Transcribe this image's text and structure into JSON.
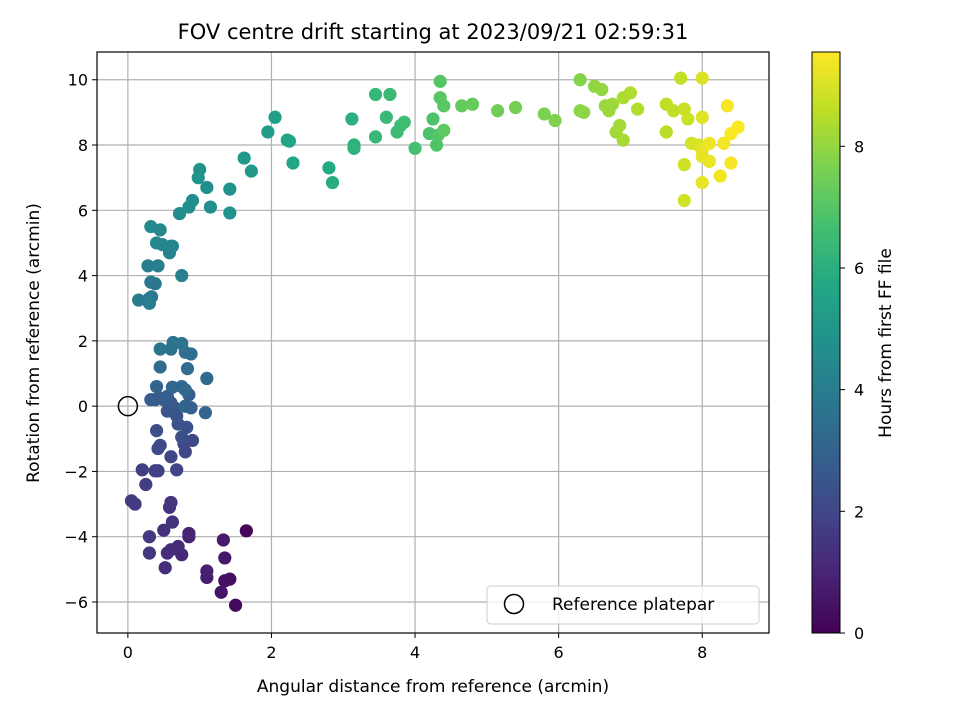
{
  "chart_data": {
    "type": "scatter",
    "title": "FOV centre drift starting at 2023/09/21 02:59:31",
    "xlabel": "Angular distance from reference (arcmin)",
    "ylabel": "Rotation from reference (arcmin)",
    "xlim": [
      -0.43,
      8.93
    ],
    "ylim": [
      -6.95,
      10.85
    ],
    "xticks": [
      0,
      2,
      4,
      6,
      8
    ],
    "yticks": [
      -6,
      -4,
      -2,
      0,
      2,
      4,
      6,
      8,
      10
    ],
    "grid": true,
    "colorbar": {
      "label": "Hours from first FF file",
      "range": [
        0,
        9.55
      ],
      "ticks": [
        0,
        2,
        4,
        6,
        8
      ],
      "colormap": "viridis"
    },
    "reference": {
      "x": 0,
      "y": 0,
      "label": "Reference platepar"
    },
    "legend_position": "lower-right",
    "points": [
      {
        "x": 1.65,
        "y": -3.82,
        "h": 0.15
      },
      {
        "x": 1.5,
        "y": -6.1,
        "h": 0.25
      },
      {
        "x": 1.42,
        "y": -5.3,
        "h": 0.35
      },
      {
        "x": 1.35,
        "y": -5.35,
        "h": 0.45
      },
      {
        "x": 1.3,
        "y": -5.7,
        "h": 0.55
      },
      {
        "x": 1.35,
        "y": -4.65,
        "h": 0.6
      },
      {
        "x": 1.33,
        "y": -4.1,
        "h": 0.7
      },
      {
        "x": 1.1,
        "y": -5.25,
        "h": 0.8
      },
      {
        "x": 1.1,
        "y": -5.05,
        "h": 0.85
      },
      {
        "x": 0.85,
        "y": -3.9,
        "h": 0.95
      },
      {
        "x": 0.85,
        "y": -4.0,
        "h": 1.0
      },
      {
        "x": 0.75,
        "y": -4.55,
        "h": 1.05
      },
      {
        "x": 0.7,
        "y": -4.3,
        "h": 1.1
      },
      {
        "x": 0.6,
        "y": -4.4,
        "h": 1.15
      },
      {
        "x": 0.55,
        "y": -4.5,
        "h": 1.2
      },
      {
        "x": 0.52,
        "y": -4.95,
        "h": 1.25
      },
      {
        "x": 0.5,
        "y": -3.8,
        "h": 1.3
      },
      {
        "x": 0.62,
        "y": -3.55,
        "h": 1.35
      },
      {
        "x": 0.58,
        "y": -3.1,
        "h": 1.4
      },
      {
        "x": 0.6,
        "y": -2.95,
        "h": 1.45
      },
      {
        "x": 0.3,
        "y": -4.5,
        "h": 1.5
      },
      {
        "x": 0.3,
        "y": -4.0,
        "h": 1.55
      },
      {
        "x": 0.1,
        "y": -3.0,
        "h": 1.6
      },
      {
        "x": 0.05,
        "y": -2.9,
        "h": 1.65
      },
      {
        "x": 0.25,
        "y": -2.4,
        "h": 1.7
      },
      {
        "x": 0.2,
        "y": -1.95,
        "h": 1.75
      },
      {
        "x": 0.38,
        "y": -1.98,
        "h": 1.8
      },
      {
        "x": 0.42,
        "y": -1.98,
        "h": 1.85
      },
      {
        "x": 0.68,
        "y": -1.95,
        "h": 1.9
      },
      {
        "x": 0.6,
        "y": -1.55,
        "h": 1.95
      },
      {
        "x": 0.8,
        "y": -1.4,
        "h": 2.0
      },
      {
        "x": 0.78,
        "y": -1.15,
        "h": 2.05
      },
      {
        "x": 0.9,
        "y": -1.05,
        "h": 2.1
      },
      {
        "x": 0.42,
        "y": -1.3,
        "h": 2.15
      },
      {
        "x": 0.45,
        "y": -1.2,
        "h": 2.2
      },
      {
        "x": 0.4,
        "y": -0.75,
        "h": 2.25
      },
      {
        "x": 0.75,
        "y": -0.95,
        "h": 2.3
      },
      {
        "x": 0.82,
        "y": -0.65,
        "h": 2.35
      },
      {
        "x": 0.7,
        "y": -0.55,
        "h": 2.4
      },
      {
        "x": 0.68,
        "y": -0.3,
        "h": 2.45
      },
      {
        "x": 0.55,
        "y": -0.15,
        "h": 2.5
      },
      {
        "x": 0.6,
        "y": 0.1,
        "h": 2.55
      },
      {
        "x": 0.65,
        "y": -0.05,
        "h": 2.6
      },
      {
        "x": 0.5,
        "y": 0.2,
        "h": 2.65
      },
      {
        "x": 0.45,
        "y": 0.25,
        "h": 2.7
      },
      {
        "x": 0.38,
        "y": 0.2,
        "h": 2.75
      },
      {
        "x": 0.32,
        "y": 0.2,
        "h": 2.8
      },
      {
        "x": 0.55,
        "y": 0.3,
        "h": 2.85
      },
      {
        "x": 0.85,
        "y": 0.35,
        "h": 2.9
      },
      {
        "x": 0.88,
        "y": -0.05,
        "h": 2.95
      },
      {
        "x": 0.8,
        "y": 0.0,
        "h": 3.0
      },
      {
        "x": 1.08,
        "y": -0.2,
        "h": 3.05
      },
      {
        "x": 0.4,
        "y": 0.6,
        "h": 3.1
      },
      {
        "x": 0.62,
        "y": 0.58,
        "h": 3.15
      },
      {
        "x": 0.75,
        "y": 0.6,
        "h": 3.2
      },
      {
        "x": 0.8,
        "y": 0.5,
        "h": 3.25
      },
      {
        "x": 1.1,
        "y": 0.85,
        "h": 3.3
      },
      {
        "x": 0.83,
        "y": 1.15,
        "h": 3.35
      },
      {
        "x": 0.45,
        "y": 1.2,
        "h": 3.4
      },
      {
        "x": 0.88,
        "y": 1.6,
        "h": 3.45
      },
      {
        "x": 0.8,
        "y": 1.65,
        "h": 3.5
      },
      {
        "x": 0.6,
        "y": 1.75,
        "h": 3.55
      },
      {
        "x": 0.63,
        "y": 1.95,
        "h": 3.6
      },
      {
        "x": 0.75,
        "y": 1.92,
        "h": 3.65
      },
      {
        "x": 0.45,
        "y": 1.75,
        "h": 3.7
      },
      {
        "x": 0.38,
        "y": 3.75,
        "h": 3.75
      },
      {
        "x": 0.32,
        "y": 3.8,
        "h": 3.8
      },
      {
        "x": 0.3,
        "y": 3.3,
        "h": 3.85
      },
      {
        "x": 0.33,
        "y": 3.35,
        "h": 3.9
      },
      {
        "x": 0.15,
        "y": 3.25,
        "h": 3.95
      },
      {
        "x": 0.3,
        "y": 3.15,
        "h": 4.0
      },
      {
        "x": 0.28,
        "y": 4.3,
        "h": 4.05
      },
      {
        "x": 0.42,
        "y": 4.3,
        "h": 4.1
      },
      {
        "x": 0.75,
        "y": 4.0,
        "h": 4.15
      },
      {
        "x": 0.58,
        "y": 4.7,
        "h": 4.2
      },
      {
        "x": 0.6,
        "y": 4.9,
        "h": 4.25
      },
      {
        "x": 0.62,
        "y": 4.9,
        "h": 4.3
      },
      {
        "x": 0.4,
        "y": 5.0,
        "h": 4.35
      },
      {
        "x": 0.48,
        "y": 4.95,
        "h": 4.4
      },
      {
        "x": 0.45,
        "y": 5.4,
        "h": 4.45
      },
      {
        "x": 0.32,
        "y": 5.5,
        "h": 4.5
      },
      {
        "x": 0.72,
        "y": 5.9,
        "h": 4.55
      },
      {
        "x": 0.85,
        "y": 6.1,
        "h": 4.6
      },
      {
        "x": 0.9,
        "y": 6.3,
        "h": 4.65
      },
      {
        "x": 1.15,
        "y": 6.1,
        "h": 4.7
      },
      {
        "x": 1.1,
        "y": 6.7,
        "h": 4.75
      },
      {
        "x": 1.42,
        "y": 5.92,
        "h": 4.8
      },
      {
        "x": 1.42,
        "y": 6.65,
        "h": 4.85
      },
      {
        "x": 0.98,
        "y": 7.0,
        "h": 4.9
      },
      {
        "x": 1.0,
        "y": 7.25,
        "h": 4.95
      },
      {
        "x": 1.62,
        "y": 7.6,
        "h": 5.05
      },
      {
        "x": 1.72,
        "y": 7.2,
        "h": 5.15
      },
      {
        "x": 1.95,
        "y": 8.4,
        "h": 5.3
      },
      {
        "x": 2.05,
        "y": 8.85,
        "h": 5.4
      },
      {
        "x": 2.22,
        "y": 8.15,
        "h": 5.5
      },
      {
        "x": 2.25,
        "y": 8.12,
        "h": 5.55
      },
      {
        "x": 2.3,
        "y": 7.45,
        "h": 5.65
      },
      {
        "x": 2.8,
        "y": 7.3,
        "h": 5.8
      },
      {
        "x": 2.85,
        "y": 6.85,
        "h": 5.9
      },
      {
        "x": 3.12,
        "y": 8.8,
        "h": 6.05
      },
      {
        "x": 3.15,
        "y": 8.0,
        "h": 6.1
      },
      {
        "x": 3.15,
        "y": 7.9,
        "h": 6.15
      },
      {
        "x": 3.45,
        "y": 9.55,
        "h": 6.3
      },
      {
        "x": 3.45,
        "y": 8.25,
        "h": 6.35
      },
      {
        "x": 3.6,
        "y": 8.85,
        "h": 6.4
      },
      {
        "x": 3.65,
        "y": 9.55,
        "h": 6.45
      },
      {
        "x": 3.75,
        "y": 8.4,
        "h": 6.5
      },
      {
        "x": 3.8,
        "y": 8.6,
        "h": 6.55
      },
      {
        "x": 3.85,
        "y": 8.7,
        "h": 6.6
      },
      {
        "x": 4.0,
        "y": 7.9,
        "h": 6.7
      },
      {
        "x": 4.2,
        "y": 8.35,
        "h": 6.8
      },
      {
        "x": 4.25,
        "y": 8.8,
        "h": 6.85
      },
      {
        "x": 4.3,
        "y": 8.0,
        "h": 6.9
      },
      {
        "x": 4.32,
        "y": 8.3,
        "h": 6.95
      },
      {
        "x": 4.35,
        "y": 9.95,
        "h": 7.0
      },
      {
        "x": 4.35,
        "y": 9.45,
        "h": 7.05
      },
      {
        "x": 4.4,
        "y": 9.2,
        "h": 7.1
      },
      {
        "x": 4.4,
        "y": 8.45,
        "h": 7.15
      },
      {
        "x": 4.65,
        "y": 9.2,
        "h": 7.25
      },
      {
        "x": 4.8,
        "y": 9.25,
        "h": 7.3
      },
      {
        "x": 5.15,
        "y": 9.05,
        "h": 7.45
      },
      {
        "x": 5.4,
        "y": 9.15,
        "h": 7.55
      },
      {
        "x": 5.8,
        "y": 8.95,
        "h": 7.65
      },
      {
        "x": 5.95,
        "y": 8.75,
        "h": 7.7
      },
      {
        "x": 6.3,
        "y": 10.0,
        "h": 7.8
      },
      {
        "x": 6.3,
        "y": 9.05,
        "h": 7.85
      },
      {
        "x": 6.35,
        "y": 9.0,
        "h": 7.9
      },
      {
        "x": 6.5,
        "y": 9.8,
        "h": 7.95
      },
      {
        "x": 6.6,
        "y": 9.7,
        "h": 8.0
      },
      {
        "x": 6.65,
        "y": 9.2,
        "h": 8.05
      },
      {
        "x": 6.7,
        "y": 9.05,
        "h": 8.1
      },
      {
        "x": 6.75,
        "y": 9.25,
        "h": 8.15
      },
      {
        "x": 6.8,
        "y": 8.4,
        "h": 8.2
      },
      {
        "x": 6.85,
        "y": 8.6,
        "h": 8.25
      },
      {
        "x": 6.9,
        "y": 8.15,
        "h": 8.3
      },
      {
        "x": 6.9,
        "y": 9.45,
        "h": 8.35
      },
      {
        "x": 7.0,
        "y": 9.6,
        "h": 8.4
      },
      {
        "x": 7.1,
        "y": 9.1,
        "h": 8.45
      },
      {
        "x": 7.5,
        "y": 8.4,
        "h": 8.55
      },
      {
        "x": 7.5,
        "y": 9.25,
        "h": 8.6
      },
      {
        "x": 7.6,
        "y": 9.05,
        "h": 8.65
      },
      {
        "x": 7.7,
        "y": 10.05,
        "h": 8.7
      },
      {
        "x": 7.75,
        "y": 9.1,
        "h": 8.75
      },
      {
        "x": 7.8,
        "y": 8.8,
        "h": 8.8
      },
      {
        "x": 7.75,
        "y": 7.4,
        "h": 8.85
      },
      {
        "x": 7.75,
        "y": 6.3,
        "h": 8.9
      },
      {
        "x": 7.85,
        "y": 8.05,
        "h": 8.95
      },
      {
        "x": 7.95,
        "y": 8.0,
        "h": 9.0
      },
      {
        "x": 8.0,
        "y": 10.05,
        "h": 9.05
      },
      {
        "x": 8.0,
        "y": 8.85,
        "h": 9.1
      },
      {
        "x": 8.0,
        "y": 7.85,
        "h": 9.15
      },
      {
        "x": 8.0,
        "y": 7.65,
        "h": 9.2
      },
      {
        "x": 8.0,
        "y": 6.85,
        "h": 9.25
      },
      {
        "x": 8.1,
        "y": 7.5,
        "h": 9.3
      },
      {
        "x": 8.1,
        "y": 8.05,
        "h": 9.35
      },
      {
        "x": 8.25,
        "y": 7.05,
        "h": 9.4
      },
      {
        "x": 8.3,
        "y": 8.05,
        "h": 9.42
      },
      {
        "x": 8.35,
        "y": 9.2,
        "h": 9.45
      },
      {
        "x": 8.4,
        "y": 7.45,
        "h": 9.48
      },
      {
        "x": 8.4,
        "y": 8.35,
        "h": 9.5
      },
      {
        "x": 8.5,
        "y": 8.55,
        "h": 9.52
      }
    ]
  }
}
